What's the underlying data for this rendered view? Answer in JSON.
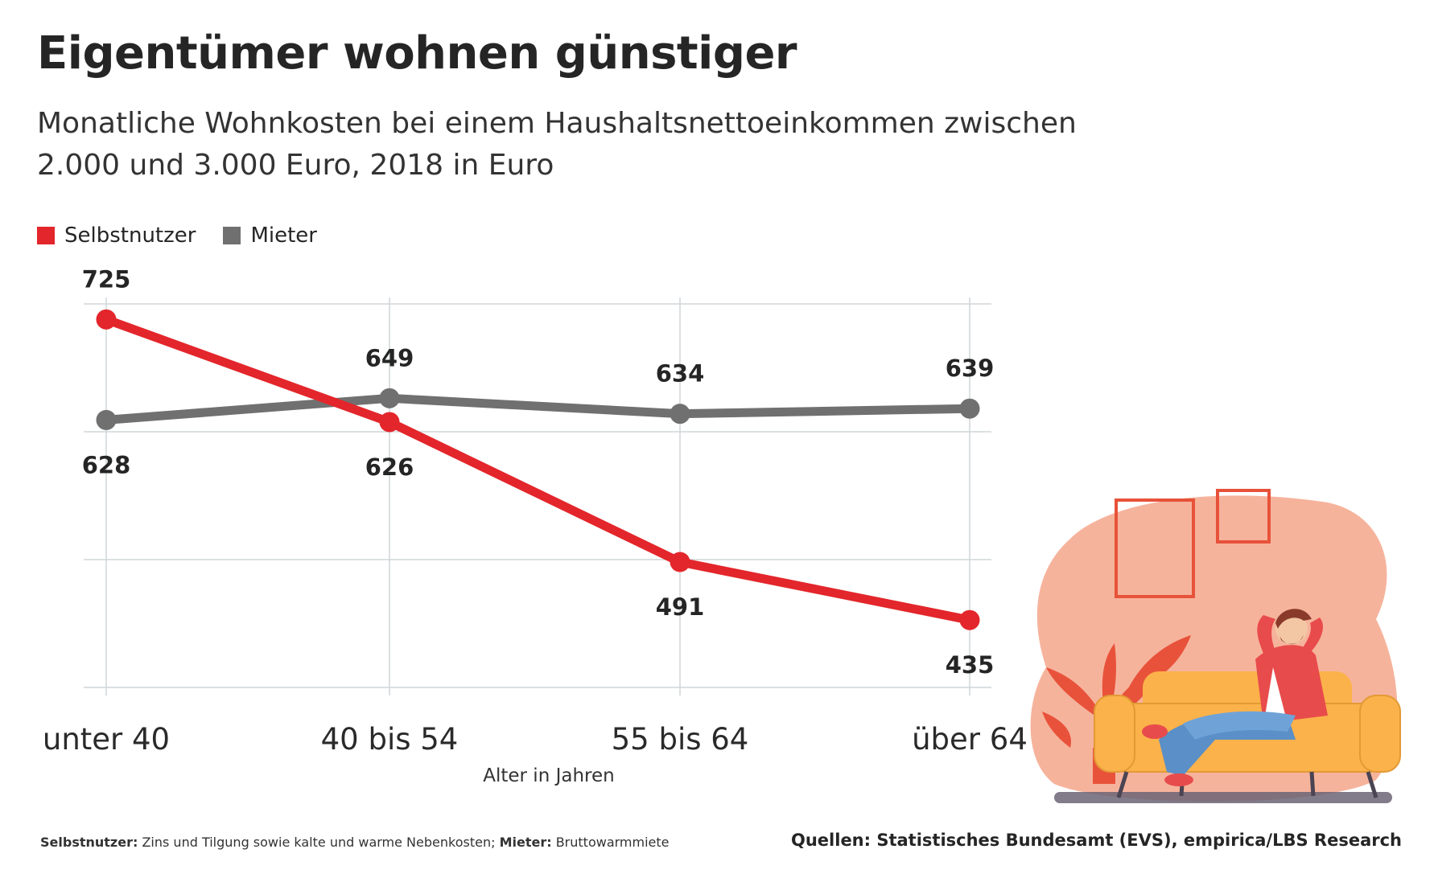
{
  "title": "Eigentümer wohnen günstiger",
  "subtitle": "Monatliche Wohnkosten bei einem Haushaltsnettoeinkommen zwischen 2.000 und 3.000 Euro, 2018 in Euro",
  "footnote": {
    "term1": "Selbstnutzer:",
    "text1": " Zins und Tilgung sowie kalte und warme Nebenkosten; ",
    "term2": "Mieter:",
    "text2": " Bruttowarmmiete"
  },
  "source": "Quellen: Statistisches Bundesamt (EVS), empirica/LBS Research",
  "chart_data": {
    "type": "line",
    "title": "Eigentümer wohnen günstiger",
    "subtitle": "Monatliche Wohnkosten bei einem Haushaltsnettoeinkommen zwischen 2.000 und 3.000 Euro, 2018 in Euro",
    "categories": [
      "unter 40",
      "40 bis 54",
      "55 bis 64",
      "über 64"
    ],
    "xlabel": "Alter in Jahren",
    "ylabel": "",
    "ylim": [
      370,
      740
    ],
    "grid": true,
    "legend_position": "top-left",
    "series": [
      {
        "name": "Selbstnutzer",
        "values": [
          725,
          626,
          491,
          435
        ],
        "color": "#e3262b",
        "label_side": [
          "above",
          "below",
          "below",
          "below"
        ]
      },
      {
        "name": "Mieter",
        "values": [
          628,
          649,
          634,
          639
        ],
        "color": "#707070",
        "label_side": [
          "below",
          "above",
          "above",
          "above"
        ]
      }
    ]
  },
  "colors": {
    "grid": "#cfd6d9",
    "text": "#252525"
  }
}
